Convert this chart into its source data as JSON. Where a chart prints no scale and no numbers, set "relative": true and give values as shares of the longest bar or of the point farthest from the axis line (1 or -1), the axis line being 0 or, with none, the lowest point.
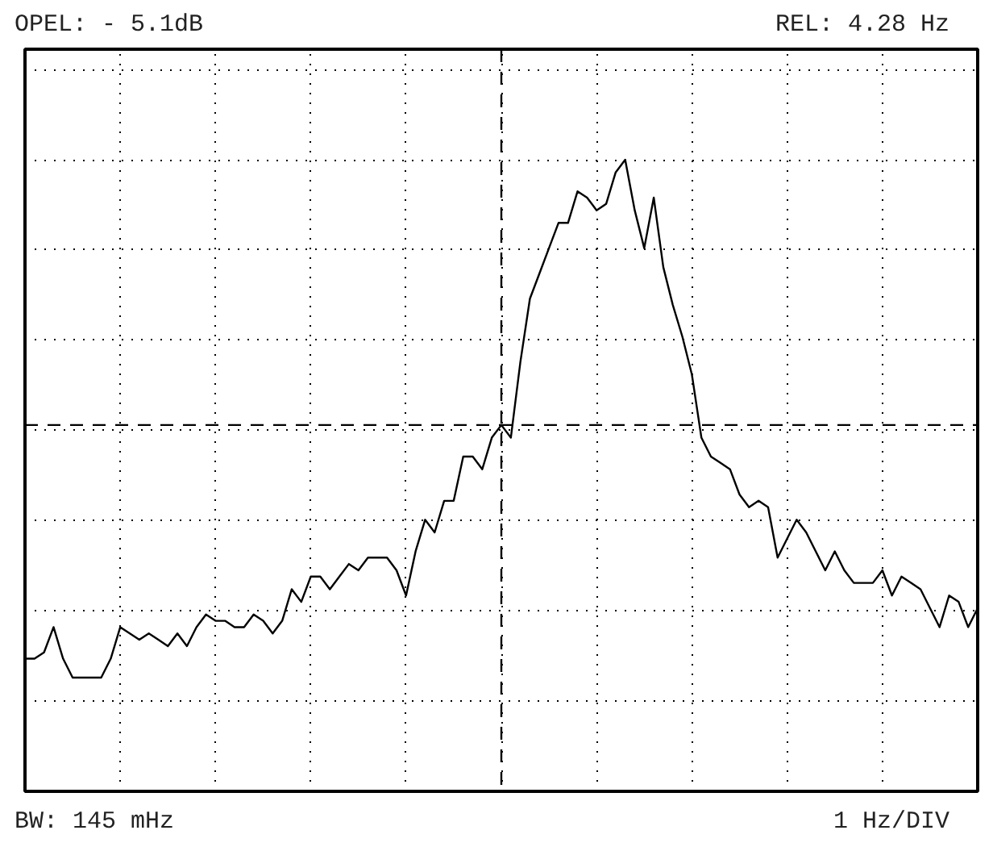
{
  "chart_data": {
    "type": "line",
    "relative": true,
    "categories": [
      null,
      null,
      null,
      null,
      null,
      null,
      null,
      null,
      null,
      null,
      null,
      null,
      null,
      null,
      null,
      null,
      null,
      null,
      null,
      null,
      null,
      null,
      null,
      null,
      null,
      null,
      null,
      null,
      null,
      null,
      null,
      null,
      null,
      null,
      null,
      null,
      null,
      null,
      null,
      null,
      null,
      null,
      null,
      null,
      null,
      null,
      null,
      null,
      null,
      null,
      null,
      null,
      null,
      null,
      null,
      null,
      null,
      null,
      null,
      null,
      null,
      null,
      null,
      null,
      null,
      null,
      null,
      null,
      null,
      null,
      null,
      null,
      null,
      null,
      null,
      null,
      null,
      null,
      null,
      null,
      null,
      null,
      null,
      null,
      null,
      null,
      null,
      null,
      null,
      null,
      null,
      null,
      null,
      null,
      null,
      null,
      null,
      null,
      null,
      null,
      null
    ],
    "series": [
      {
        "color": "#000000",
        "values": [
          0.21,
          0.21,
          0.22,
          0.26,
          0.21,
          0.18,
          0.18,
          0.18,
          0.18,
          0.21,
          0.26,
          0.25,
          0.24,
          0.25,
          0.24,
          0.23,
          0.25,
          0.23,
          0.26,
          0.28,
          0.27,
          0.27,
          0.26,
          0.26,
          0.28,
          0.27,
          0.25,
          0.27,
          0.32,
          0.3,
          0.34,
          0.34,
          0.32,
          0.34,
          0.36,
          0.35,
          0.37,
          0.37,
          0.37,
          0.35,
          0.31,
          0.38,
          0.43,
          0.41,
          0.46,
          0.46,
          0.53,
          0.53,
          0.51,
          0.56,
          0.58,
          0.56,
          0.68,
          0.78,
          0.82,
          0.86,
          0.9,
          0.9,
          0.95,
          0.94,
          0.92,
          0.93,
          0.98,
          1.0,
          0.92,
          0.86,
          0.94,
          0.83,
          0.77,
          0.72,
          0.66,
          0.56,
          0.53,
          0.52,
          0.51,
          0.47,
          0.45,
          0.46,
          0.45,
          0.37,
          0.4,
          0.43,
          0.41,
          0.38,
          0.35,
          0.38,
          0.35,
          0.33,
          0.33,
          0.33,
          0.35,
          0.31,
          0.34,
          0.33,
          0.32,
          0.29,
          0.26,
          0.31,
          0.3,
          0.26,
          0.29
        ]
      }
    ],
    "grid": true,
    "tick_labels": false,
    "marker": "none",
    "line_style": "solid",
    "ref_lines": [
      {
        "axis": "x",
        "label": null,
        "line_style": "dashed"
      },
      {
        "axis": "y",
        "value": 0.58,
        "label": null,
        "line_style": "dashed"
      }
    ],
    "annotations": [
      "OPEL: - 5.1dB",
      "REL: 4.28 Hz",
      "BW: 145 mHz",
      "1 Hz/DIV"
    ]
  }
}
